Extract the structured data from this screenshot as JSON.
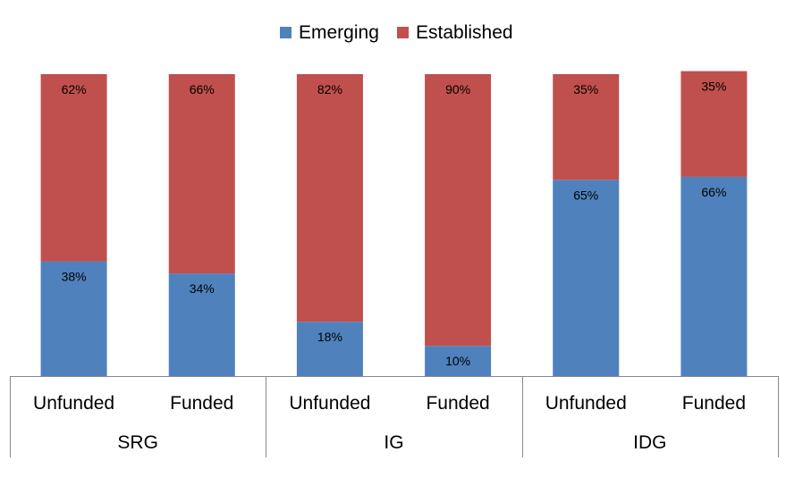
{
  "colors": {
    "emerging": "#4F81BD",
    "established": "#C0504D",
    "axis": "#888888",
    "text": "#000000"
  },
  "chart_data": {
    "type": "bar",
    "stacked": true,
    "normalized_percent": true,
    "title": "",
    "xlabel": "",
    "ylabel": "",
    "ylim": [
      0,
      100
    ],
    "grid": false,
    "legend_position": "top-center",
    "categories": [
      "Unfunded",
      "Funded",
      "Unfunded",
      "Funded",
      "Unfunded",
      "Funded"
    ],
    "groups": [
      {
        "label": "SRG",
        "categories": [
          "Unfunded",
          "Funded"
        ]
      },
      {
        "label": "IG",
        "categories": [
          "Unfunded",
          "Funded"
        ]
      },
      {
        "label": "IDG",
        "categories": [
          "Unfunded",
          "Funded"
        ]
      }
    ],
    "series": [
      {
        "name": "Emerging",
        "color": "#4F81BD",
        "values": [
          38,
          34,
          18,
          10,
          65,
          66
        ],
        "labels": [
          "38%",
          "34%",
          "18%",
          "10%",
          "65%",
          "66%"
        ]
      },
      {
        "name": "Established",
        "color": "#C0504D",
        "values": [
          62,
          66,
          82,
          90,
          35,
          35
        ],
        "labels": [
          "62%",
          "66%",
          "82%",
          "90%",
          "35%",
          "35%"
        ]
      }
    ]
  }
}
